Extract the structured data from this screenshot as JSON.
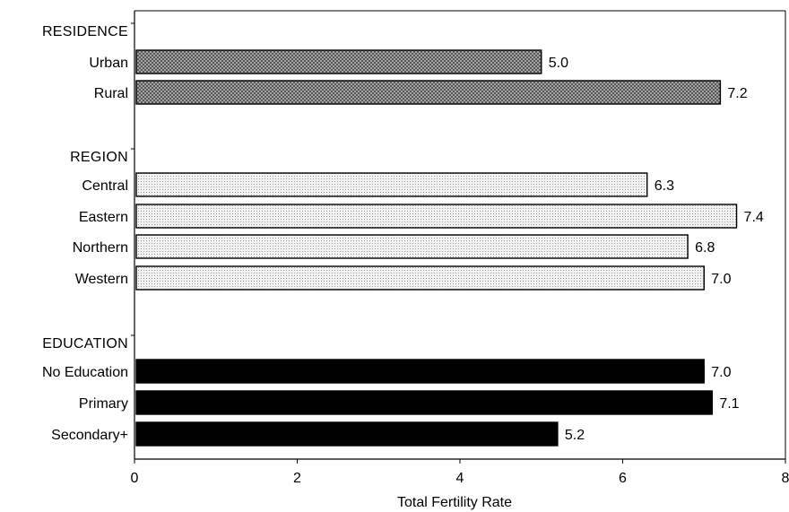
{
  "chart_data": {
    "type": "bar",
    "orientation": "horizontal",
    "xlabel": "Total Fertility Rate",
    "xlim": [
      0,
      8
    ],
    "xticks": [
      0,
      2,
      4,
      6,
      8
    ],
    "grid": false,
    "groups": [
      {
        "label": "RESIDENCE",
        "fill": "#8e8e8e",
        "pattern": "crosshatch",
        "items": [
          {
            "category": "Urban",
            "value": 5.0,
            "value_label": "5.0"
          },
          {
            "category": "Rural",
            "value": 7.2,
            "value_label": "7.2"
          }
        ]
      },
      {
        "label": "REGION",
        "fill": "#e4e4e4",
        "pattern": "dots",
        "items": [
          {
            "category": "Central",
            "value": 6.3,
            "value_label": "6.3"
          },
          {
            "category": "Eastern",
            "value": 7.4,
            "value_label": "7.4"
          },
          {
            "category": "Northern",
            "value": 6.8,
            "value_label": "6.8"
          },
          {
            "category": "Western",
            "value": 7.0,
            "value_label": "7.0"
          }
        ]
      },
      {
        "label": "EDUCATION",
        "fill": "#000000",
        "pattern": "solid",
        "items": [
          {
            "category": "No Education",
            "value": 7.0,
            "value_label": "7.0"
          },
          {
            "category": "Primary",
            "value": 7.1,
            "value_label": "7.1"
          },
          {
            "category": "Secondary+",
            "value": 5.2,
            "value_label": "5.2"
          }
        ]
      }
    ]
  }
}
